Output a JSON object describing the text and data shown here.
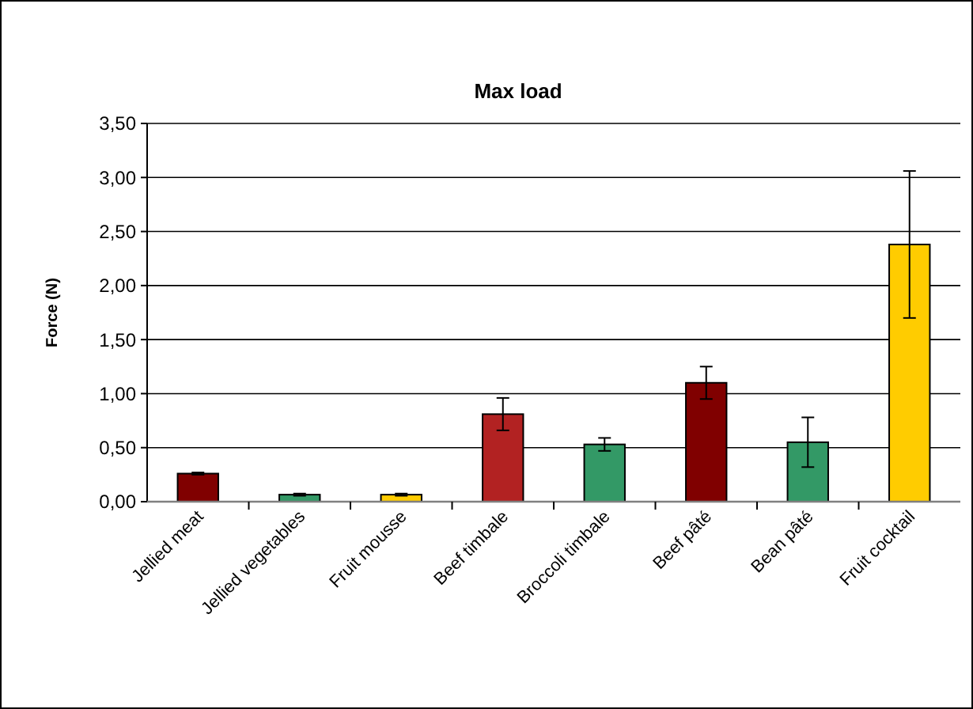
{
  "chart_data": {
    "type": "bar",
    "title": "Max load",
    "ylabel": "Force (N)",
    "categories": [
      "Jellied meat",
      "Jellied vegetables",
      "Fruit mousse",
      "Beef timbale",
      "Broccoli timbale",
      "Beef pâté",
      "Bean pâté",
      "Fruit cocktail"
    ],
    "values": [
      0.26,
      0.065,
      0.065,
      0.81,
      0.53,
      1.1,
      0.55,
      2.38
    ],
    "errors": [
      0.01,
      0.01,
      0.01,
      0.15,
      0.06,
      0.15,
      0.23,
      0.68
    ],
    "colors": [
      "#800000",
      "#339966",
      "#ffcc00",
      "#b22222",
      "#339966",
      "#800000",
      "#339966",
      "#ffcc00"
    ],
    "ylim": [
      0,
      3.5
    ],
    "yticks": [
      {
        "value": 0,
        "label": "0,00"
      },
      {
        "value": 0.5,
        "label": "0,50"
      },
      {
        "value": 1,
        "label": "1,00"
      },
      {
        "value": 1.5,
        "label": "1,50"
      },
      {
        "value": 2,
        "label": "2,00"
      },
      {
        "value": 2.5,
        "label": "2,50"
      },
      {
        "value": 3,
        "label": "3,00"
      },
      {
        "value": 3.5,
        "label": "3,50"
      }
    ],
    "grid": "y"
  }
}
